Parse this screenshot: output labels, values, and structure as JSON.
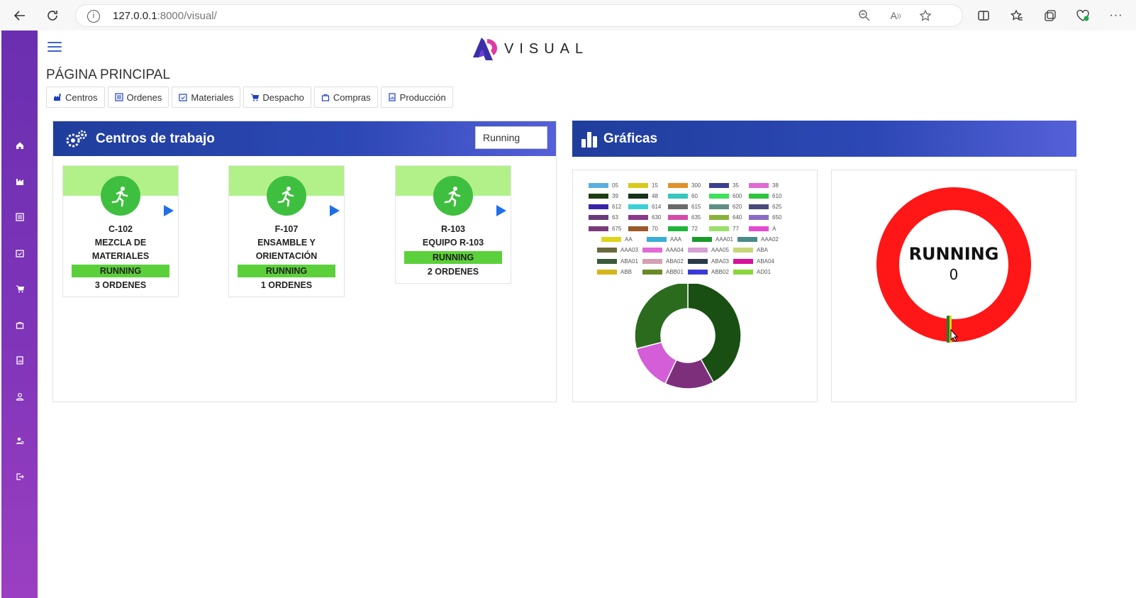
{
  "browser": {
    "url_host": "127.0.0.1",
    "url_rest": ":8000/visual/"
  },
  "app": {
    "logo_text": "VISUAL",
    "page_title": "PÁGINA PRINCIPAL"
  },
  "sidebar": {
    "items": [
      {
        "icon": "home-icon"
      },
      {
        "icon": "chart-icon"
      },
      {
        "icon": "list-icon"
      },
      {
        "icon": "calendar-check-icon"
      },
      {
        "icon": "cart-icon"
      },
      {
        "icon": "bag-icon"
      },
      {
        "icon": "report-icon"
      },
      {
        "icon": "user-icon"
      },
      {
        "icon": "user-settings-icon"
      },
      {
        "icon": "logout-icon"
      }
    ]
  },
  "tabs": [
    {
      "label": "Centros",
      "icon": "factory-icon"
    },
    {
      "label": "Ordenes",
      "icon": "list-icon"
    },
    {
      "label": "Materiales",
      "icon": "calendar-check-icon"
    },
    {
      "label": "Despacho",
      "icon": "cart-icon"
    },
    {
      "label": "Compras",
      "icon": "bag-icon"
    },
    {
      "label": "Producción",
      "icon": "report-icon"
    }
  ],
  "work_centers": {
    "title": "Centros de trabajo",
    "filter_value": "Running",
    "cards": [
      {
        "code": "C-102",
        "name": "MEZCLA DE MATERIALES",
        "status": "RUNNING",
        "orders": "3 ORDENES"
      },
      {
        "code": "F-107",
        "name": "ENSAMBLE Y ORIENTACIÓN",
        "status": "RUNNING",
        "orders": "1 ORDENES"
      },
      {
        "code": "R-103",
        "name": "EQUIPO R-103",
        "status": "RUNNING",
        "orders": "2 ORDENES"
      }
    ]
  },
  "charts": {
    "title": "Gráficas",
    "gauge": {
      "label": "RUNNING",
      "value": "0",
      "color": "#ff1a1a"
    }
  },
  "chart_data": [
    {
      "type": "pie",
      "title": "",
      "legend": [
        {
          "label": "05",
          "color": "#5aaee0"
        },
        {
          "label": "15",
          "color": "#d9c91c"
        },
        {
          "label": "300",
          "color": "#e0912a"
        },
        {
          "label": "35",
          "color": "#3a3f8f"
        },
        {
          "label": "38",
          "color": "#e06ad4"
        },
        {
          "label": "39",
          "color": "#1f3d12"
        },
        {
          "label": "48",
          "color": "#16321a"
        },
        {
          "label": "60",
          "color": "#34c7c0"
        },
        {
          "label": "600",
          "color": "#3fe05a"
        },
        {
          "label": "610",
          "color": "#2ec43c"
        },
        {
          "label": "612",
          "color": "#3a24a8"
        },
        {
          "label": "614",
          "color": "#3ad1d6"
        },
        {
          "label": "615",
          "color": "#6a6a6a"
        },
        {
          "label": "620",
          "color": "#5f8f86"
        },
        {
          "label": "625",
          "color": "#4a4a7a"
        },
        {
          "label": "63",
          "color": "#6a3a7a"
        },
        {
          "label": "630",
          "color": "#8a3a8a"
        },
        {
          "label": "635",
          "color": "#d64aa8"
        },
        {
          "label": "640",
          "color": "#8ab23a"
        },
        {
          "label": "650",
          "color": "#8a6ac4"
        },
        {
          "label": "675",
          "color": "#7a3a7a"
        },
        {
          "label": "70",
          "color": "#9a5a2a"
        },
        {
          "label": "72",
          "color": "#1fb53a"
        },
        {
          "label": "77",
          "color": "#9ae06a"
        },
        {
          "label": "A",
          "color": "#e64ad4"
        },
        {
          "label": "AA",
          "color": "#e0d41c"
        },
        {
          "label": "AAA",
          "color": "#3aaed6"
        },
        {
          "label": "AAA01",
          "color": "#1a9a2a"
        },
        {
          "label": "AAA02",
          "color": "#4a8a8a"
        },
        {
          "label": "AAA03",
          "color": "#6a6a3a"
        },
        {
          "label": "AAA04",
          "color": "#e06ad6"
        },
        {
          "label": "AAA05",
          "color": "#d6a0d6"
        },
        {
          "label": "ABA",
          "color": "#c8d67a"
        },
        {
          "label": "ABA01",
          "color": "#3a5a3a"
        },
        {
          "label": "ABA02",
          "color": "#d6a0b4"
        },
        {
          "label": "ABA03",
          "color": "#2a3a4a"
        },
        {
          "label": "ABA04",
          "color": "#d6129a"
        },
        {
          "label": "ABB",
          "color": "#d6b41c"
        },
        {
          "label": "ABB01",
          "color": "#6a8a2a"
        },
        {
          "label": "ABB02",
          "color": "#3a3ad6"
        },
        {
          "label": "AD01",
          "color": "#8ad63a"
        }
      ],
      "slices": [
        {
          "label": "39",
          "value": 42,
          "color": "#1a4f14"
        },
        {
          "label": "630",
          "value": 15,
          "color": "#7e2f7c"
        },
        {
          "label": "AAA04",
          "value": 14,
          "color": "#d35ed8"
        },
        {
          "label": "48",
          "value": 29,
          "color": "#2a6b1e"
        }
      ]
    }
  ]
}
